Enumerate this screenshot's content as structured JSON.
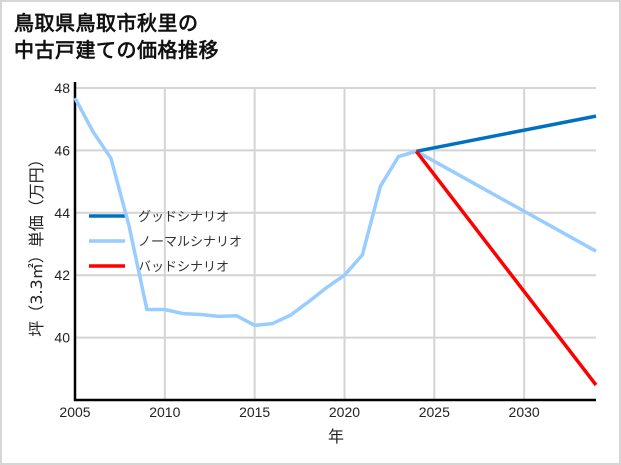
{
  "title": {
    "line1": "鳥取県鳥取市秋里の",
    "line2": "中古戸建ての価格推移"
  },
  "chart_data": {
    "type": "line",
    "title": "鳥取県鳥取市秋里の中古戸建ての価格推移",
    "xlabel": "年",
    "ylabel": "坪（3.3㎡）単価（万円）",
    "xlim": [
      2005,
      2034
    ],
    "ylim": [
      38,
      48
    ],
    "x_ticks": [
      2005,
      2010,
      2015,
      2020,
      2025,
      2030
    ],
    "y_ticks": [
      40,
      42,
      44,
      46,
      48
    ],
    "grid": true,
    "legend_position": "left-middle",
    "series": [
      {
        "name": "グッドシナリオ",
        "color": "#0070c0",
        "x": [
          2024,
          2034
        ],
        "y": [
          45.97,
          47.1
        ]
      },
      {
        "name": "ノーマルシナリオ",
        "color": "#99ccff",
        "x": [
          2005,
          2006,
          2007,
          2008,
          2009,
          2010,
          2011,
          2012,
          2013,
          2014,
          2015,
          2016,
          2017,
          2018,
          2019,
          2020,
          2021,
          2022,
          2023,
          2024,
          2034
        ],
        "y": [
          47.68,
          46.6,
          45.75,
          43.6,
          40.9,
          40.9,
          40.77,
          40.74,
          40.68,
          40.7,
          40.39,
          40.45,
          40.72,
          41.15,
          41.6,
          42.0,
          42.65,
          44.85,
          45.8,
          45.97,
          42.77
        ]
      },
      {
        "name": "バッドシナリオ",
        "color": "#ff0000",
        "x": [
          2024,
          2034
        ],
        "y": [
          45.97,
          38.48
        ]
      }
    ]
  },
  "colors": {
    "grid": "#d4d4d4",
    "axis": "#000000",
    "frame": "#d6d6d6"
  }
}
